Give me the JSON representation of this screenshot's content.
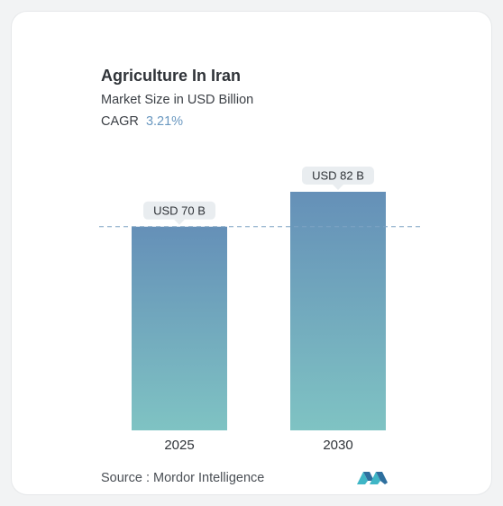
{
  "chart_data": {
    "type": "bar",
    "title": "Agriculture In Iran",
    "subtitle": "Market Size in USD Billion",
    "cagr_label": "CAGR",
    "cagr_value": "3.21%",
    "categories": [
      "2025",
      "2030"
    ],
    "values": [
      70,
      82
    ],
    "data_labels": [
      "USD 70 B",
      "USD 82 B"
    ],
    "reference_line_value": 70,
    "colors": {
      "bar_top": "#6590b8",
      "bar_bottom": "#7fc3c3",
      "label_bg": "#e9edf0",
      "dashed_line": "#7fa3c4"
    }
  },
  "source": {
    "label": "Source :",
    "name": "Mordor Intelligence"
  },
  "logo": {
    "icon": "mordor-intelligence-logo-icon",
    "colors": [
      "#2e6f9e",
      "#3fb6c6"
    ]
  }
}
